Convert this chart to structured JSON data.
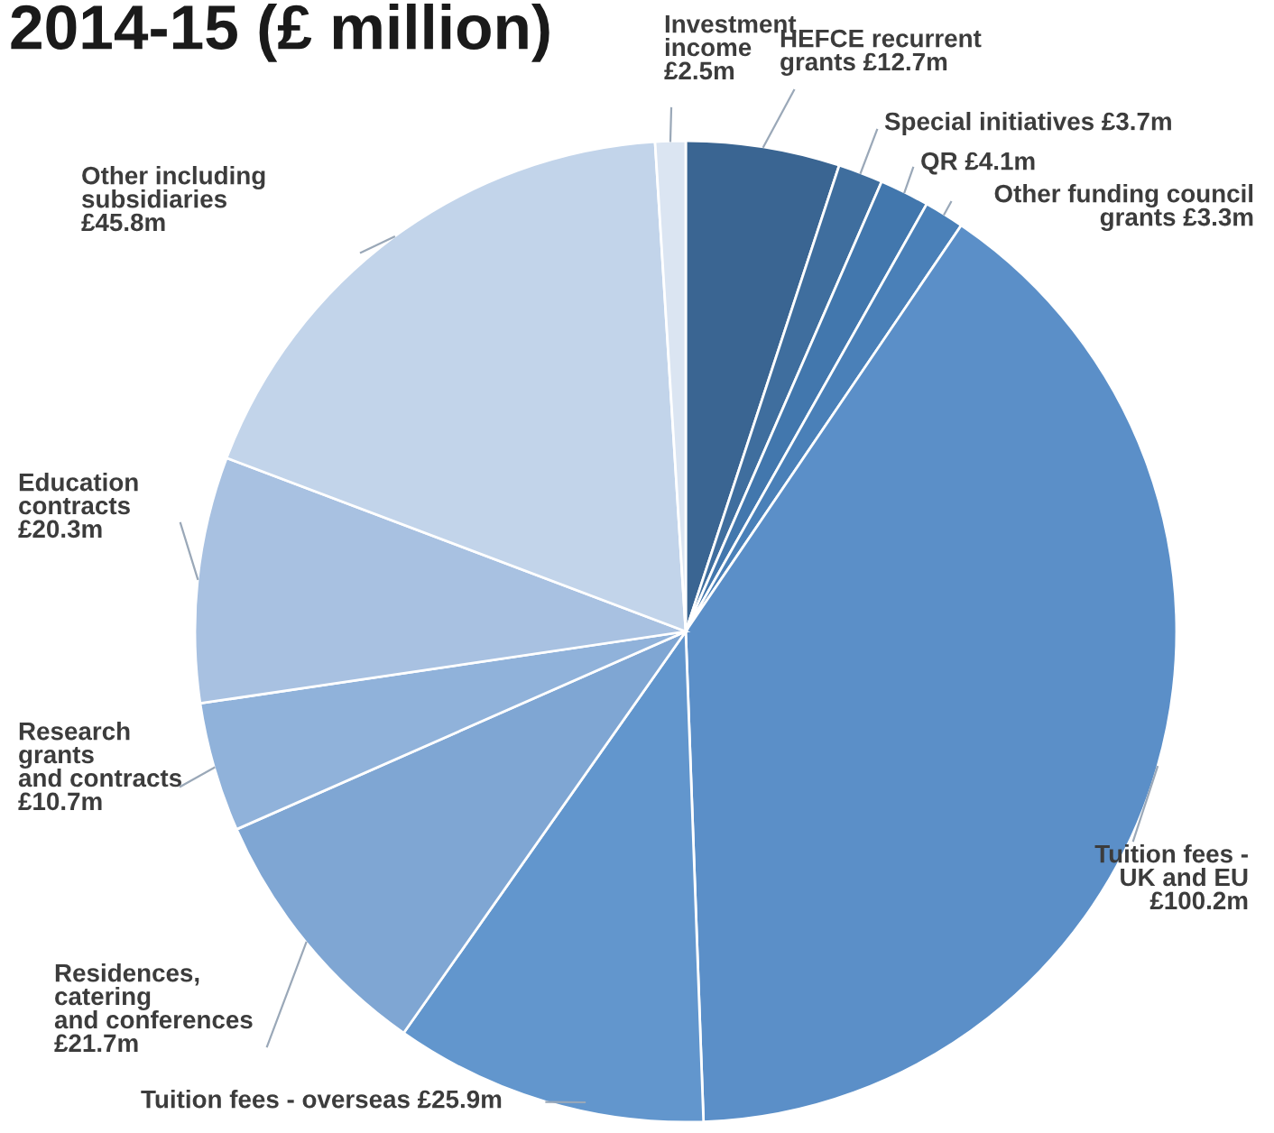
{
  "chart_data": {
    "type": "pie",
    "title": "2014-15 (£ million)",
    "categories": [
      "HEFCE recurrent\ngrants",
      "Special initiatives",
      "QR",
      "Other funding council\ngrants",
      "Tuition fees -\nUK and EU\n",
      "Tuition fees - overseas",
      "Residences,\ncatering\nand conferences\n",
      "Research\ngrants\nand contracts\n",
      "Education\ncontracts\n",
      "Other including\nsubsidiaries\n",
      "Investment\nincome\n"
    ],
    "values": [
      12.7,
      3.7,
      4.1,
      3.3,
      100.2,
      25.9,
      21.7,
      10.7,
      20.3,
      45.8,
      2.5
    ],
    "value_labels": [
      "£12.7m",
      "£3.7m",
      "£4.1m",
      "£3.3m",
      "£100.2m",
      "£25.9m",
      "£21.7m",
      "£10.7m",
      "£20.3m",
      "£45.8m",
      "£2.5m"
    ],
    "colors": [
      "#3a6592",
      "#3f6e9e",
      "#4277ad",
      "#4a80b8",
      "#5b8fc8",
      "#6296cd",
      "#7fa6d3",
      "#90b2da",
      "#a8c1e1",
      "#c2d4ea",
      "#dbe5f2"
    ]
  }
}
